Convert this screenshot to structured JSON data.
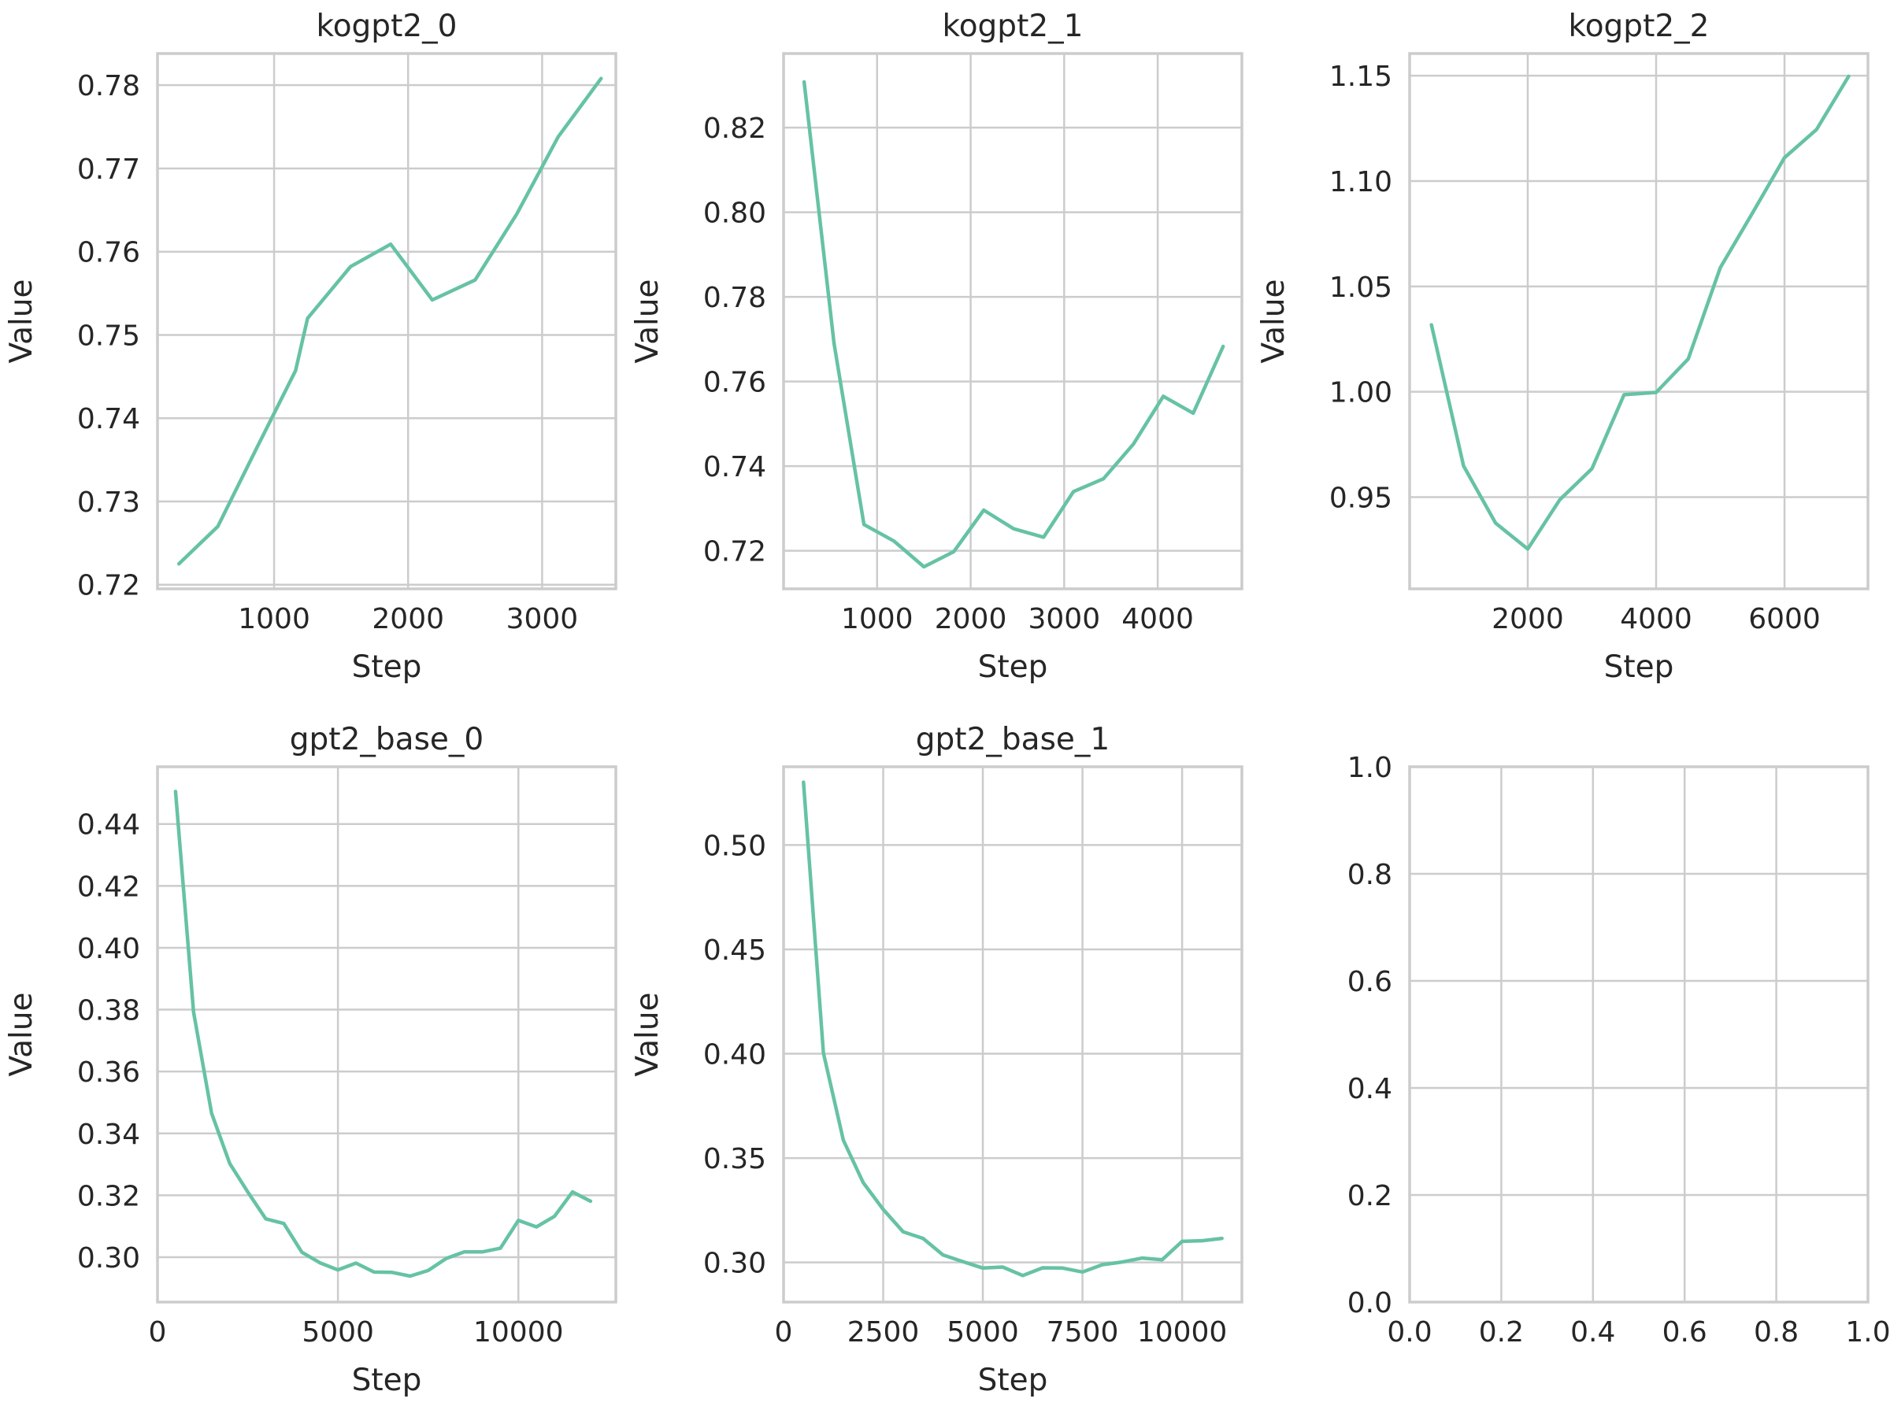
{
  "line_color": "#66c2a5",
  "chart_data": [
    {
      "type": "line",
      "title": "kogpt2_0",
      "xlabel": "Step",
      "ylabel": "Value",
      "xlim": [
        130,
        3550
      ],
      "ylim": [
        0.7195,
        0.7838
      ],
      "xticks": [
        1000,
        2000,
        3000
      ],
      "yticks": [
        0.72,
        0.73,
        0.74,
        0.75,
        0.76,
        0.77,
        0.78
      ],
      "xtick_labels": [
        "1000",
        "2000",
        "3000"
      ],
      "ytick_labels": [
        "0.72",
        "0.73",
        "0.74",
        "0.75",
        "0.76",
        "0.77",
        "0.78"
      ],
      "grid": true,
      "series": [
        {
          "x": [
            290,
            580,
            870,
            1160,
            1250,
            1570,
            1870,
            2180,
            2500,
            2810,
            3120,
            3440
          ],
          "values": [
            0.7225,
            0.727,
            0.7364,
            0.7457,
            0.752,
            0.7582,
            0.7609,
            0.7542,
            0.7566,
            0.7645,
            0.7738,
            0.7808
          ]
        }
      ]
    },
    {
      "type": "line",
      "title": "kogpt2_1",
      "xlabel": "Step",
      "ylabel": "Value",
      "xlim": [
        0,
        4900
      ],
      "ylim": [
        0.711,
        0.8375
      ],
      "xticks": [
        1000,
        2000,
        3000,
        4000
      ],
      "yticks": [
        0.72,
        0.74,
        0.76,
        0.78,
        0.8,
        0.82
      ],
      "xtick_labels": [
        "1000",
        "2000",
        "3000",
        "4000"
      ],
      "ytick_labels": [
        "0.72",
        "0.74",
        "0.76",
        "0.78",
        "0.80",
        "0.82"
      ],
      "grid": true,
      "series": [
        {
          "x": [
            220,
            540,
            860,
            1180,
            1500,
            1820,
            2140,
            2460,
            2780,
            3100,
            3420,
            3740,
            4060,
            4380,
            4700
          ],
          "values": [
            0.8308,
            0.769,
            0.7262,
            0.7223,
            0.7162,
            0.7198,
            0.7296,
            0.7252,
            0.7232,
            0.734,
            0.737,
            0.7452,
            0.7565,
            0.7525,
            0.7683
          ]
        }
      ]
    },
    {
      "type": "line",
      "title": "kogpt2_2",
      "xlabel": "Step",
      "ylabel": "Value",
      "xlim": [
        160,
        7300
      ],
      "ylim": [
        0.9065,
        1.1605
      ],
      "xticks": [
        2000,
        4000,
        6000
      ],
      "yticks": [
        0.95,
        1.0,
        1.05,
        1.1,
        1.15
      ],
      "xtick_labels": [
        "2000",
        "4000",
        "6000"
      ],
      "ytick_labels": [
        "0.95",
        "1.00",
        "1.05",
        "1.10",
        "1.15"
      ],
      "grid": true,
      "series": [
        {
          "x": [
            500,
            1000,
            1500,
            2000,
            2500,
            3000,
            3500,
            4000,
            4500,
            5000,
            5500,
            6000,
            6500,
            7000
          ],
          "values": [
            1.0318,
            0.9648,
            0.9377,
            0.9254,
            0.9488,
            0.9635,
            0.9986,
            0.9997,
            1.0156,
            1.0589,
            1.0848,
            1.1111,
            1.1245,
            1.1497
          ]
        }
      ]
    },
    {
      "type": "line",
      "title": "gpt2_base_0",
      "xlabel": "Step",
      "ylabel": "Value",
      "xlim": [
        0,
        12700
      ],
      "ylim": [
        0.2855,
        0.4585
      ],
      "xticks": [
        0,
        5000,
        10000
      ],
      "yticks": [
        0.3,
        0.32,
        0.34,
        0.36,
        0.38,
        0.4,
        0.42,
        0.44
      ],
      "xtick_labels": [
        "0",
        "5000",
        "10000"
      ],
      "ytick_labels": [
        "0.30",
        "0.32",
        "0.34",
        "0.36",
        "0.38",
        "0.40",
        "0.42",
        "0.44"
      ],
      "grid": true,
      "series": [
        {
          "x": [
            500,
            1000,
            1500,
            2000,
            2500,
            3000,
            3500,
            4000,
            4500,
            5000,
            5500,
            6000,
            6500,
            7000,
            7500,
            8000,
            8500,
            9000,
            9500,
            10000,
            10500,
            11000,
            11500,
            12000
          ],
          "values": [
            0.4505,
            0.3792,
            0.3465,
            0.3303,
            0.3211,
            0.3124,
            0.3109,
            0.3016,
            0.2982,
            0.2959,
            0.2981,
            0.2952,
            0.2951,
            0.2939,
            0.2957,
            0.2996,
            0.3017,
            0.3017,
            0.3029,
            0.3119,
            0.3098,
            0.3132,
            0.3211,
            0.3181
          ]
        }
      ]
    },
    {
      "type": "line",
      "title": "gpt2_base_1",
      "xlabel": "Step",
      "ylabel": "Value",
      "xlim": [
        0,
        11500
      ],
      "ylim": [
        0.281,
        0.5375
      ],
      "xticks": [
        0,
        2500,
        5000,
        7500,
        10000
      ],
      "yticks": [
        0.3,
        0.35,
        0.4,
        0.45,
        0.5
      ],
      "xtick_labels": [
        "0",
        "2500",
        "5000",
        "7500",
        "10000"
      ],
      "ytick_labels": [
        "0.30",
        "0.35",
        "0.40",
        "0.45",
        "0.50"
      ],
      "grid": true,
      "series": [
        {
          "x": [
            500,
            1000,
            1500,
            2000,
            2500,
            3000,
            3500,
            4000,
            4500,
            5000,
            5500,
            6000,
            6500,
            7000,
            7500,
            8000,
            8500,
            9000,
            9500,
            10000,
            10500,
            11000
          ],
          "values": [
            0.5301,
            0.4004,
            0.3586,
            0.3382,
            0.3254,
            0.3147,
            0.3115,
            0.3036,
            0.3004,
            0.2973,
            0.2978,
            0.2937,
            0.2974,
            0.2973,
            0.2954,
            0.2989,
            0.3002,
            0.3021,
            0.3013,
            0.3101,
            0.3104,
            0.3115
          ]
        }
      ]
    },
    {
      "type": "line",
      "title": "",
      "xlabel": "",
      "ylabel": "",
      "xlim": [
        0,
        1
      ],
      "ylim": [
        0,
        1
      ],
      "xticks": [
        0,
        0.2,
        0.4,
        0.6,
        0.8,
        1.0
      ],
      "yticks": [
        0,
        0.2,
        0.4,
        0.6,
        0.8,
        1.0
      ],
      "xtick_labels": [
        "0.0",
        "0.2",
        "0.4",
        "0.6",
        "0.8",
        "1.0"
      ],
      "ytick_labels": [
        "0.0",
        "0.2",
        "0.4",
        "0.6",
        "0.8",
        "1.0"
      ],
      "grid": true,
      "series": []
    }
  ]
}
